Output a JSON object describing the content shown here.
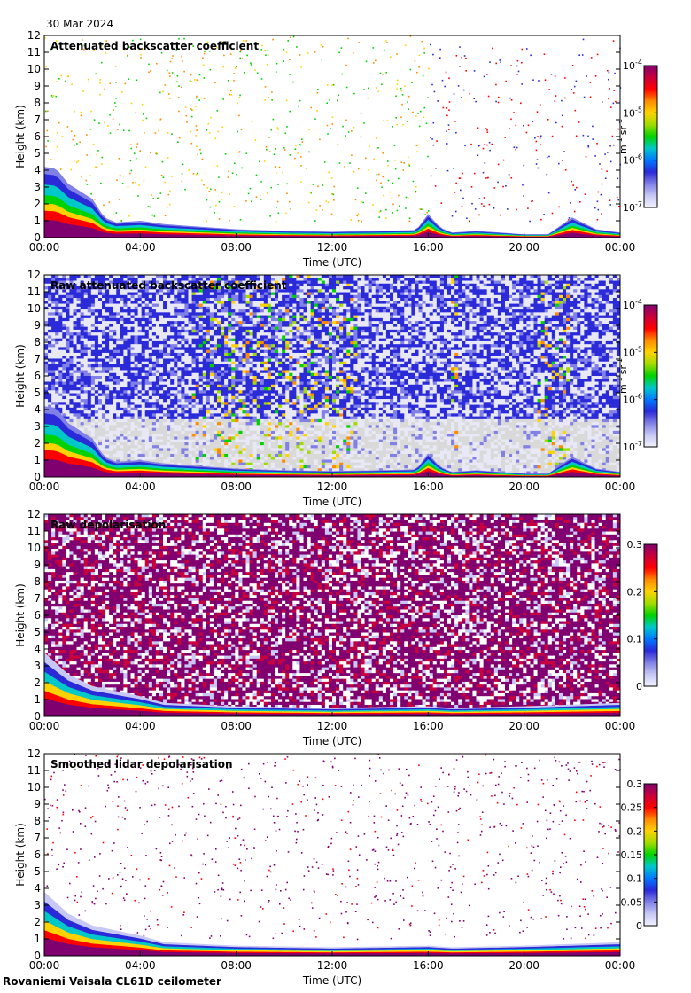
{
  "page": {
    "date": "30 Mar 2024",
    "footer": "Rovaniemi Vaisala CL61D ceilometer"
  },
  "colormap": [
    "#f2f2ff",
    "#c8c8f5",
    "#8080e6",
    "#2a2ad8",
    "#0078ff",
    "#00c8c8",
    "#00d200",
    "#a0dc00",
    "#ffd200",
    "#ff8c00",
    "#ff0000",
    "#c8003c",
    "#800070"
  ],
  "chart_data": [
    {
      "type": "heatmap",
      "title": "Attenuated backscatter coefficient",
      "xlabel": "Time (UTC)",
      "ylabel": "Height (km)",
      "xticks": [
        "00:00",
        "04:00",
        "08:00",
        "12:00",
        "16:00",
        "20:00",
        "00:00"
      ],
      "yticks": [
        "0",
        "1",
        "2",
        "3",
        "4",
        "5",
        "6",
        "7",
        "8",
        "9",
        "10",
        "11",
        "12"
      ],
      "ylim": [
        0,
        12
      ],
      "xlim_hours": [
        0,
        24
      ],
      "colorbar": {
        "scale": "log",
        "range": [
          1e-07,
          0.0001
        ],
        "tick_labels": [
          {
            "base": "10",
            "exp": "-4"
          },
          {
            "base": "10",
            "exp": "-5"
          },
          {
            "base": "10",
            "exp": "-6"
          },
          {
            "base": "10",
            "exp": "-7"
          }
        ],
        "unit": {
          "m": "m",
          "m_exp": "-1",
          "sr": "sr",
          "sr_exp": "-1"
        }
      },
      "boundary_layer_top_km": [
        [
          0,
          4.2
        ],
        [
          0.5,
          4.1
        ],
        [
          1,
          3.2
        ],
        [
          2,
          2.3
        ],
        [
          2.5,
          1.2
        ],
        [
          3,
          0.9
        ],
        [
          4,
          1.0
        ],
        [
          5,
          0.8
        ],
        [
          6,
          0.7
        ],
        [
          8,
          0.5
        ],
        [
          10,
          0.4
        ],
        [
          12,
          0.35
        ],
        [
          14,
          0.4
        ],
        [
          15.5,
          0.45
        ],
        [
          16,
          1.4
        ],
        [
          16.5,
          0.6
        ],
        [
          17,
          0.3
        ],
        [
          18,
          0.4
        ],
        [
          19,
          0.3
        ],
        [
          20,
          0.2
        ],
        [
          21,
          0.2
        ],
        [
          22,
          1.2
        ],
        [
          23,
          0.5
        ],
        [
          24,
          0.3
        ]
      ],
      "sparse_aloft": true
    },
    {
      "type": "heatmap",
      "title": "Raw attenuated backscatter coefficient",
      "xlabel": "Time (UTC)",
      "ylabel": "Height (km)",
      "xticks": [
        "00:00",
        "04:00",
        "08:00",
        "12:00",
        "16:00",
        "20:00",
        "00:00"
      ],
      "yticks": [
        "0",
        "1",
        "2",
        "3",
        "4",
        "5",
        "6",
        "7",
        "8",
        "9",
        "10",
        "11",
        "12"
      ],
      "ylim": [
        0,
        12
      ],
      "xlim_hours": [
        0,
        24
      ],
      "colorbar": {
        "scale": "log",
        "range": [
          1e-07,
          0.0001
        ],
        "tick_labels": [
          {
            "base": "10",
            "exp": "-4"
          },
          {
            "base": "10",
            "exp": "-5"
          },
          {
            "base": "10",
            "exp": "-6"
          },
          {
            "base": "10",
            "exp": "-7"
          }
        ],
        "unit": {
          "m": "m",
          "m_exp": "-1",
          "sr": "sr",
          "sr_exp": "-1"
        }
      },
      "boundary_layer_top_km": [
        [
          0,
          4.2
        ],
        [
          0.5,
          4.1
        ],
        [
          1,
          3.2
        ],
        [
          2,
          2.3
        ],
        [
          2.5,
          1.2
        ],
        [
          3,
          0.9
        ],
        [
          4,
          1.0
        ],
        [
          5,
          0.8
        ],
        [
          6,
          0.7
        ],
        [
          8,
          0.5
        ],
        [
          10,
          0.4
        ],
        [
          12,
          0.35
        ],
        [
          14,
          0.4
        ],
        [
          15.5,
          0.45
        ],
        [
          16,
          1.4
        ],
        [
          16.5,
          0.6
        ],
        [
          17,
          0.3
        ],
        [
          18,
          0.4
        ],
        [
          19,
          0.3
        ],
        [
          20,
          0.2
        ],
        [
          21,
          0.2
        ],
        [
          22,
          1.2
        ],
        [
          23,
          0.5
        ],
        [
          24,
          0.3
        ]
      ],
      "noisy_aloft": true
    },
    {
      "type": "heatmap",
      "title": "Raw depolarisation",
      "xlabel": "Time (UTC)",
      "ylabel": "Height (km)",
      "xticks": [
        "00:00",
        "04:00",
        "08:00",
        "12:00",
        "16:00",
        "20:00",
        "00:00"
      ],
      "yticks": [
        "0",
        "1",
        "2",
        "3",
        "4",
        "5",
        "6",
        "7",
        "8",
        "9",
        "10",
        "11",
        "12"
      ],
      "ylim": [
        0,
        12
      ],
      "xlim_hours": [
        0,
        24
      ],
      "colorbar": {
        "scale": "linear",
        "range": [
          0,
          0.3
        ],
        "tick_labels": [
          "0.3",
          "0.2",
          "0.1",
          "0"
        ]
      },
      "boundary_layer_top_km": [
        [
          0,
          3.8
        ],
        [
          1,
          2.5
        ],
        [
          2,
          1.8
        ],
        [
          3,
          1.5
        ],
        [
          4,
          1.2
        ],
        [
          5,
          0.8
        ],
        [
          8,
          0.6
        ],
        [
          12,
          0.5
        ],
        [
          16,
          0.6
        ],
        [
          17,
          0.5
        ],
        [
          20,
          0.6
        ],
        [
          24,
          0.8
        ]
      ],
      "noisy_aloft": true
    },
    {
      "type": "heatmap",
      "title": "Smoothed lidar depolarisation",
      "xlabel": "Time (UTC)",
      "ylabel": "Height (km)",
      "xticks": [
        "00:00",
        "04:00",
        "08:00",
        "12:00",
        "16:00",
        "20:00",
        "00:00"
      ],
      "yticks": [
        "0",
        "1",
        "2",
        "3",
        "4",
        "5",
        "6",
        "7",
        "8",
        "9",
        "10",
        "11",
        "12"
      ],
      "ylim": [
        0,
        12
      ],
      "xlim_hours": [
        0,
        24
      ],
      "colorbar": {
        "scale": "linear",
        "range": [
          0,
          0.3
        ],
        "tick_labels": [
          "0.3",
          "0.25",
          "0.2",
          "0.15",
          "0.1",
          "0.05",
          "0"
        ]
      },
      "boundary_layer_top_km": [
        [
          0,
          3.8
        ],
        [
          1,
          2.5
        ],
        [
          2,
          1.8
        ],
        [
          3,
          1.5
        ],
        [
          4,
          1.2
        ],
        [
          5,
          0.8
        ],
        [
          8,
          0.6
        ],
        [
          12,
          0.5
        ],
        [
          16,
          0.6
        ],
        [
          17,
          0.5
        ],
        [
          20,
          0.6
        ],
        [
          24,
          0.8
        ]
      ],
      "sparse_aloft": true
    }
  ]
}
